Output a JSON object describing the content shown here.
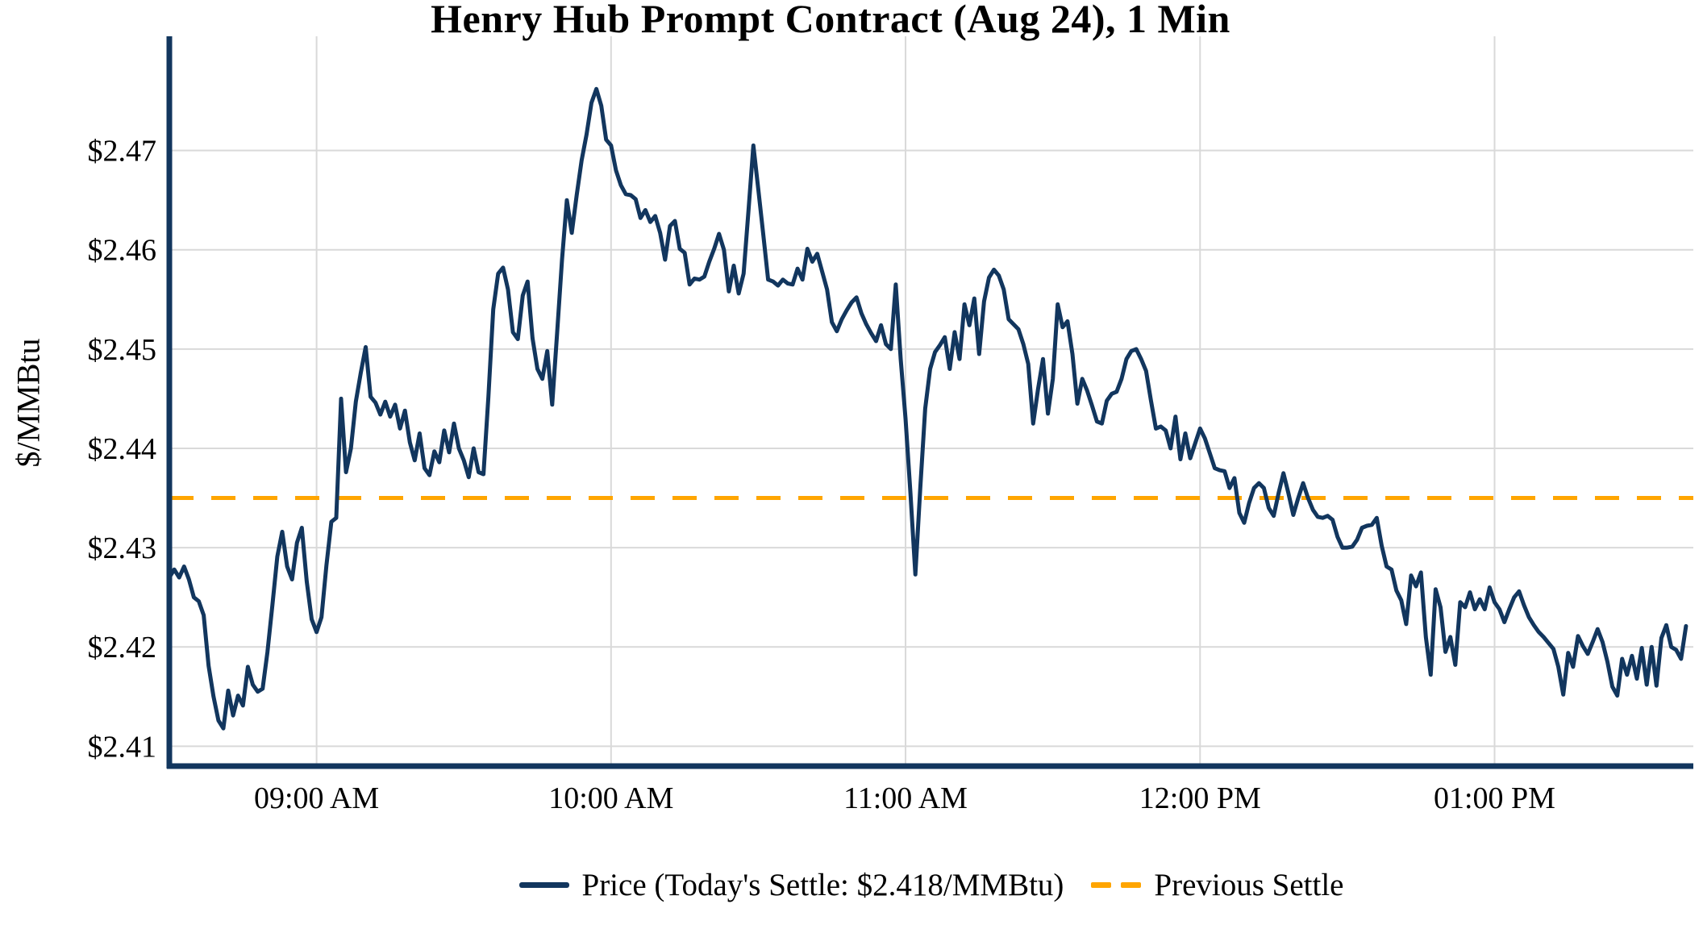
{
  "page": {
    "background": "#ffffff"
  },
  "chart_data": {
    "type": "line",
    "title": "Henry Hub Prompt Contract (Aug 24), 1 Min",
    "ylabel": "$/MMBtu",
    "grid": true,
    "grid_color": "#d9d9d9",
    "axis_color": "#12365e",
    "legend_position": "bottom-center",
    "ylim": [
      2.408,
      2.4815
    ],
    "xlim_minutes": [
      0,
      310.5
    ],
    "y_ticks": [
      {
        "label": "$2.41",
        "value": 2.41
      },
      {
        "label": "$2.42",
        "value": 2.42
      },
      {
        "label": "$2.43",
        "value": 2.43
      },
      {
        "label": "$2.44",
        "value": 2.44
      },
      {
        "label": "$2.45",
        "value": 2.45
      },
      {
        "label": "$2.46",
        "value": 2.46
      },
      {
        "label": "$2.47",
        "value": 2.47
      }
    ],
    "x_ticks": [
      {
        "label": "09:00 AM",
        "minute": 30
      },
      {
        "label": "10:00 AM",
        "minute": 90
      },
      {
        "label": "11:00 AM",
        "minute": 150
      },
      {
        "label": "12:00 PM",
        "minute": 210
      },
      {
        "label": "01:00 PM",
        "minute": 270
      }
    ],
    "series": [
      {
        "name": "Price (Today's Settle: $2.418/MMBtu)",
        "type": "line",
        "style": "solid",
        "color": "#12365e",
        "start_time": "08:30 AM",
        "interval_minutes": 1,
        "values": [
          2.427,
          2.4278,
          2.427,
          2.4281,
          2.4268,
          2.425,
          2.4246,
          2.4232,
          2.4181,
          2.415,
          2.4126,
          2.4118,
          2.4156,
          2.4131,
          2.4151,
          2.4141,
          2.418,
          2.4162,
          2.4155,
          2.4158,
          2.4195,
          2.4242,
          2.4291,
          2.4316,
          2.4281,
          2.4268,
          2.4305,
          2.432,
          2.4266,
          2.4228,
          2.4215,
          2.423,
          2.4282,
          2.4326,
          2.433,
          2.445,
          2.4376,
          2.44,
          2.4447,
          2.4476,
          2.4502,
          2.4452,
          2.4446,
          2.4434,
          2.4447,
          2.4432,
          2.4444,
          2.442,
          2.4438,
          2.4406,
          2.4388,
          2.4415,
          2.438,
          2.4373,
          2.4397,
          2.4386,
          2.4418,
          2.4396,
          2.4425,
          2.44,
          2.4388,
          2.4371,
          2.44,
          2.4376,
          2.4374,
          2.4452,
          2.454,
          2.4576,
          2.4582,
          2.456,
          2.4517,
          2.451,
          2.4554,
          2.4568,
          2.4511,
          2.448,
          2.447,
          2.4498,
          2.4444,
          2.4516,
          2.459,
          2.465,
          2.4617,
          2.4655,
          2.469,
          2.4716,
          2.4748,
          2.4762,
          2.4745,
          2.4711,
          2.4705,
          2.468,
          2.4665,
          2.4656,
          2.4655,
          2.4651,
          2.4632,
          2.464,
          2.4628,
          2.4634,
          2.4617,
          2.459,
          2.4624,
          2.4629,
          2.4601,
          2.4597,
          2.4565,
          2.4571,
          2.457,
          2.4573,
          2.4588,
          2.4601,
          2.4616,
          2.46,
          2.4558,
          2.4584,
          2.4556,
          2.4576,
          2.464,
          2.4705,
          2.4661,
          2.4616,
          2.457,
          2.4568,
          2.4564,
          2.457,
          2.4566,
          2.4565,
          2.4581,
          2.457,
          2.4601,
          2.4588,
          2.4596,
          2.4578,
          2.456,
          2.4527,
          2.4518,
          2.453,
          2.4539,
          2.4547,
          2.4552,
          2.4536,
          2.4525,
          2.4516,
          2.4508,
          2.4524,
          2.4505,
          2.45,
          2.4565,
          2.449,
          2.443,
          2.4355,
          2.4273,
          2.436,
          2.444,
          2.448,
          2.4497,
          2.4504,
          2.4512,
          2.448,
          2.4517,
          2.449,
          2.4545,
          2.4524,
          2.4551,
          2.4495,
          2.4548,
          2.4572,
          2.458,
          2.4574,
          2.456,
          2.453,
          2.4525,
          2.452,
          2.4505,
          2.4485,
          2.4425,
          2.446,
          2.449,
          2.4435,
          2.447,
          2.4545,
          2.4522,
          2.4528,
          2.4495,
          2.4445,
          2.447,
          2.4458,
          2.4443,
          2.4427,
          2.4425,
          2.4448,
          2.4455,
          2.4457,
          2.447,
          2.449,
          2.4498,
          2.45,
          2.449,
          2.4478,
          2.4448,
          2.442,
          2.4422,
          2.4418,
          2.44,
          2.4432,
          2.4389,
          2.4415,
          2.439,
          2.4405,
          2.442,
          2.441,
          2.4395,
          2.438,
          2.4378,
          2.4377,
          2.436,
          2.437,
          2.4335,
          2.4325,
          2.4345,
          2.436,
          2.4365,
          2.436,
          2.434,
          2.4332,
          2.4355,
          2.4375,
          2.4355,
          2.4333,
          2.435,
          2.4365,
          2.435,
          2.4338,
          2.4331,
          2.433,
          2.4332,
          2.4328,
          2.4311,
          2.43,
          2.43,
          2.4301,
          2.4308,
          2.432,
          2.4322,
          2.4323,
          2.433,
          2.4302,
          2.4281,
          2.4278,
          2.4257,
          2.4247,
          2.4223,
          2.4272,
          2.4261,
          2.4275,
          2.421,
          2.4172,
          2.4258,
          2.424,
          2.4195,
          2.421,
          2.4182,
          2.4245,
          2.424,
          2.4255,
          2.4238,
          2.4248,
          2.4238,
          2.426,
          2.4245,
          2.4238,
          2.4225,
          2.4238,
          2.425,
          2.4256,
          2.4242,
          2.423,
          2.4222,
          2.4215,
          2.421,
          2.4204,
          2.4198,
          2.418,
          2.4152,
          2.4194,
          2.418,
          2.4211,
          2.4201,
          2.4193,
          2.4205,
          2.4218,
          2.4205,
          2.4185,
          2.416,
          2.4151,
          2.4188,
          2.4172,
          2.4191,
          2.4168,
          2.4199,
          2.4162,
          2.42,
          2.4161,
          2.4209,
          2.4222,
          2.42,
          2.4197,
          2.4188,
          2.4221
        ]
      },
      {
        "name": "Previous Settle",
        "type": "hline",
        "style": "dashed",
        "color": "#ffa500",
        "value": 2.435
      }
    ]
  }
}
